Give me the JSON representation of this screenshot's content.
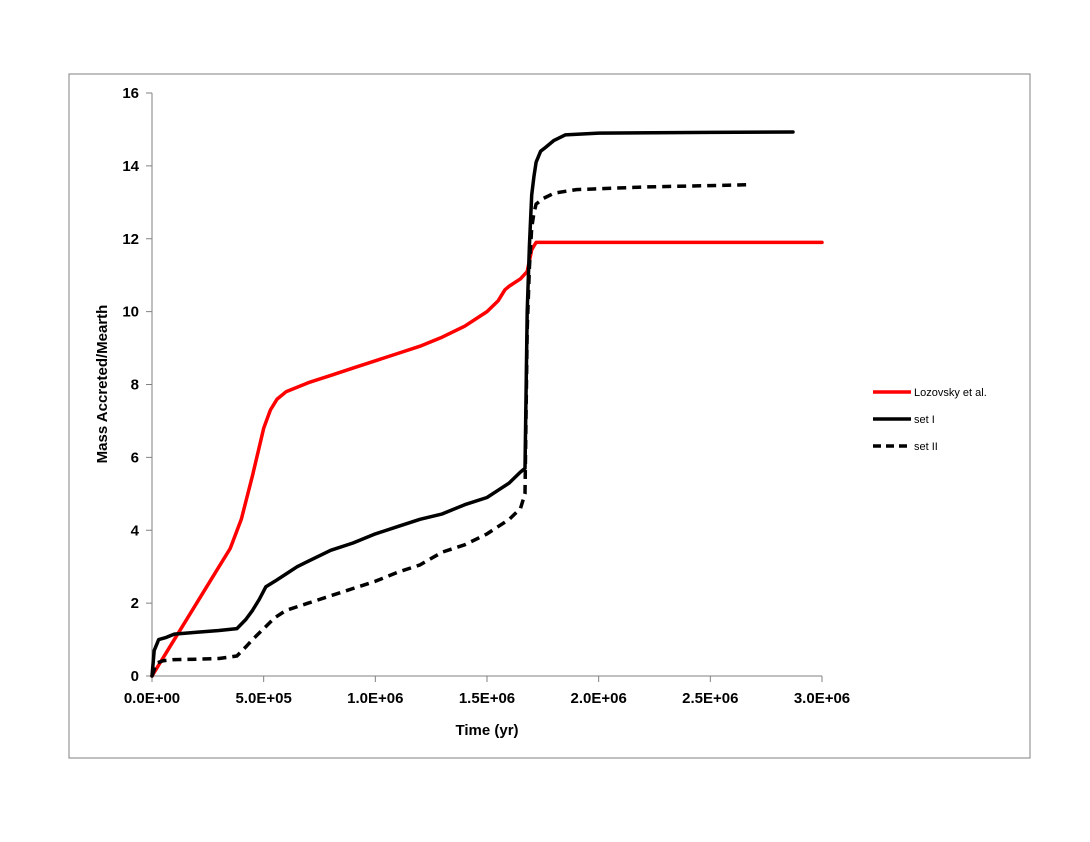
{
  "chart_data": {
    "type": "line",
    "title": "",
    "xlabel": "Time (yr)",
    "ylabel": "Mass Accreted/Mearth",
    "xlim": [
      0,
      3000000
    ],
    "ylim": [
      0,
      16
    ],
    "x_ticks": [
      0,
      500000,
      1000000,
      1500000,
      2000000,
      2500000,
      3000000
    ],
    "x_tick_labels": [
      "0.0E+00",
      "5.0E+05",
      "1.0E+06",
      "1.5E+06",
      "2.0E+06",
      "2.5E+06",
      "3.0E+06"
    ],
    "y_ticks": [
      0,
      2,
      4,
      6,
      8,
      10,
      12,
      14,
      16
    ],
    "y_tick_labels": [
      "0",
      "2",
      "4",
      "6",
      "8",
      "10",
      "12",
      "14",
      "16"
    ],
    "grid": false,
    "legend_position": "right",
    "series": [
      {
        "name": "Lozovsky et al.",
        "color": "#ff0000",
        "dash": "solid",
        "x": [
          0,
          100000,
          200000,
          300000,
          350000,
          400000,
          450000,
          500000,
          530000,
          560000,
          600000,
          700000,
          800000,
          900000,
          1000000,
          1100000,
          1200000,
          1300000,
          1400000,
          1500000,
          1550000,
          1580000,
          1600000,
          1650000,
          1680000,
          1700000,
          1720000,
          1800000,
          2000000,
          2500000,
          3000000
        ],
        "values": [
          0,
          1.0,
          2.0,
          3.0,
          3.5,
          4.3,
          5.5,
          6.8,
          7.3,
          7.6,
          7.8,
          8.05,
          8.25,
          8.45,
          8.65,
          8.85,
          9.05,
          9.3,
          9.6,
          10.0,
          10.3,
          10.6,
          10.7,
          10.9,
          11.1,
          11.7,
          11.9,
          11.9,
          11.9,
          11.9,
          11.9
        ]
      },
      {
        "name": "set I",
        "color": "#000000",
        "dash": "solid",
        "x": [
          0,
          10000,
          30000,
          60000,
          100000,
          200000,
          300000,
          380000,
          420000,
          450000,
          480000,
          510000,
          550000,
          600000,
          650000,
          700000,
          800000,
          900000,
          1000000,
          1100000,
          1200000,
          1300000,
          1400000,
          1500000,
          1550000,
          1600000,
          1650000,
          1670000,
          1680000,
          1690000,
          1700000,
          1710000,
          1720000,
          1740000,
          1760000,
          1800000,
          1850000,
          2000000,
          2500000,
          2870000
        ],
        "values": [
          0,
          0.7,
          1.0,
          1.05,
          1.15,
          1.2,
          1.25,
          1.3,
          1.55,
          1.8,
          2.1,
          2.45,
          2.6,
          2.8,
          3.0,
          3.15,
          3.45,
          3.65,
          3.9,
          4.1,
          4.3,
          4.45,
          4.7,
          4.9,
          5.1,
          5.3,
          5.6,
          5.7,
          10.0,
          11.8,
          13.2,
          13.7,
          14.1,
          14.4,
          14.5,
          14.7,
          14.85,
          14.9,
          14.92,
          14.93
        ]
      },
      {
        "name": "set II",
        "color": "#000000",
        "dash": "dashed",
        "x": [
          0,
          20000,
          50000,
          100000,
          200000,
          300000,
          380000,
          420000,
          450000,
          500000,
          550000,
          600000,
          700000,
          800000,
          900000,
          1000000,
          1100000,
          1200000,
          1300000,
          1400000,
          1500000,
          1600000,
          1650000,
          1670000,
          1680000,
          1690000,
          1700000,
          1710000,
          1720000,
          1750000,
          1800000,
          1900000,
          2000000,
          2200000,
          2500000,
          2660000
        ],
        "values": [
          0,
          0.35,
          0.42,
          0.45,
          0.46,
          0.48,
          0.55,
          0.8,
          1.0,
          1.3,
          1.6,
          1.8,
          2.0,
          2.2,
          2.4,
          2.6,
          2.85,
          3.05,
          3.4,
          3.6,
          3.9,
          4.3,
          4.6,
          5.0,
          9.5,
          11.2,
          12.3,
          12.7,
          12.95,
          13.1,
          13.25,
          13.35,
          13.37,
          13.42,
          13.46,
          13.48
        ]
      }
    ]
  }
}
